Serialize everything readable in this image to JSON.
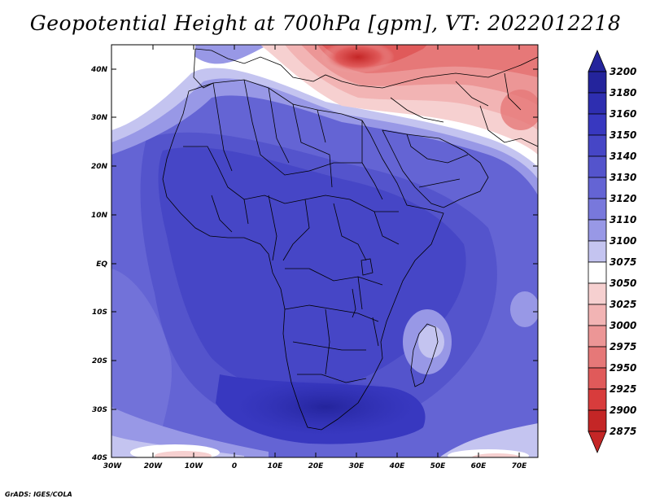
{
  "title": "Geopotential Height at 700hPa [gpm], VT: 2022012218",
  "credit": "GrADS: IGES/COLA",
  "lat_labels": [
    "40N",
    "30N",
    "20N",
    "10N",
    "EQ",
    "10S",
    "20S",
    "30S",
    "40S"
  ],
  "lon_labels": [
    "30W",
    "20W",
    "10W",
    "0",
    "10E",
    "20E",
    "30E",
    "40E",
    "50E",
    "60E",
    "70E"
  ],
  "colorbar": {
    "levels": [
      "3200",
      "3180",
      "3160",
      "3150",
      "3140",
      "3130",
      "3120",
      "3110",
      "3100",
      "3075",
      "3050",
      "3025",
      "3000",
      "2975",
      "2950",
      "2925",
      "2900",
      "2875"
    ],
    "colors": [
      "#24249c",
      "#2e2eb0",
      "#3838c0",
      "#4646c6",
      "#5454cc",
      "#6464d4",
      "#7878dc",
      "#9898e6",
      "#c4c4f0",
      "#ffffff",
      "#f6d0d0",
      "#f2b4b4",
      "#ec9696",
      "#e67878",
      "#e05a5a",
      "#d83c3c",
      "#c42626"
    ],
    "arrow_top": "#24249c",
    "arrow_bottom": "#c42626"
  }
}
